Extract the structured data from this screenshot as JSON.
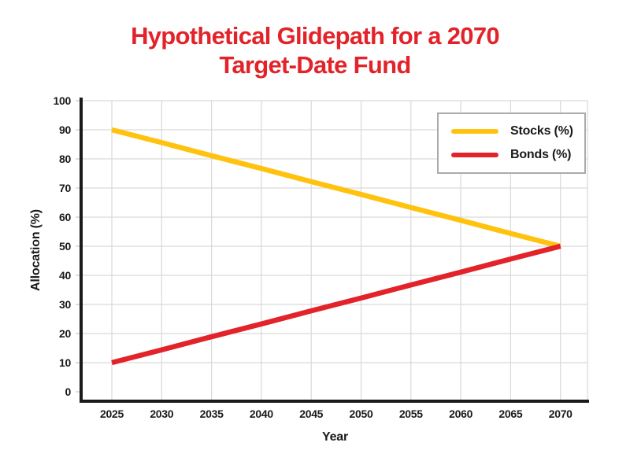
{
  "title": {
    "text": "Hypothetical Glidepath for a 2070 Target-Date Fund",
    "lines": [
      "Hypothetical Glidepath for a 2070",
      "Target-Date Fund"
    ],
    "color": "#e2232a"
  },
  "chart_data": {
    "type": "line",
    "title": "Hypothetical Glidepath for a 2070 Target-Date Fund",
    "xlabel": "Year",
    "ylabel": "Allocation (%)",
    "x_ticks": [
      "2025",
      "2030",
      "2035",
      "2040",
      "2045",
      "2050",
      "2055",
      "2060",
      "2065",
      "2070"
    ],
    "y_ticks": [
      0,
      10,
      20,
      30,
      40,
      50,
      60,
      70,
      80,
      90,
      100
    ],
    "xlim": [
      2022,
      2073
    ],
    "ylim": [
      0,
      100
    ],
    "grid": true,
    "legend_position": "top-right",
    "x": [
      2025,
      2030,
      2035,
      2040,
      2045,
      2050,
      2055,
      2060,
      2065,
      2070
    ],
    "series": [
      {
        "name": "Stocks (%)",
        "color": "#ffc20e",
        "values": [
          90,
          85.6,
          81.1,
          76.7,
          72.2,
          67.8,
          63.3,
          58.9,
          54.4,
          50
        ]
      },
      {
        "name": "Bonds (%)",
        "color": "#e2232a",
        "values": [
          10,
          14.4,
          18.9,
          23.3,
          27.8,
          32.2,
          36.7,
          41.1,
          45.6,
          50
        ]
      }
    ]
  },
  "colors": {
    "grid": "#d9d9d9",
    "axis": "#1a1a1a",
    "legend_border": "#ababab",
    "background": "#ffffff",
    "text": "#1a1a1a"
  }
}
